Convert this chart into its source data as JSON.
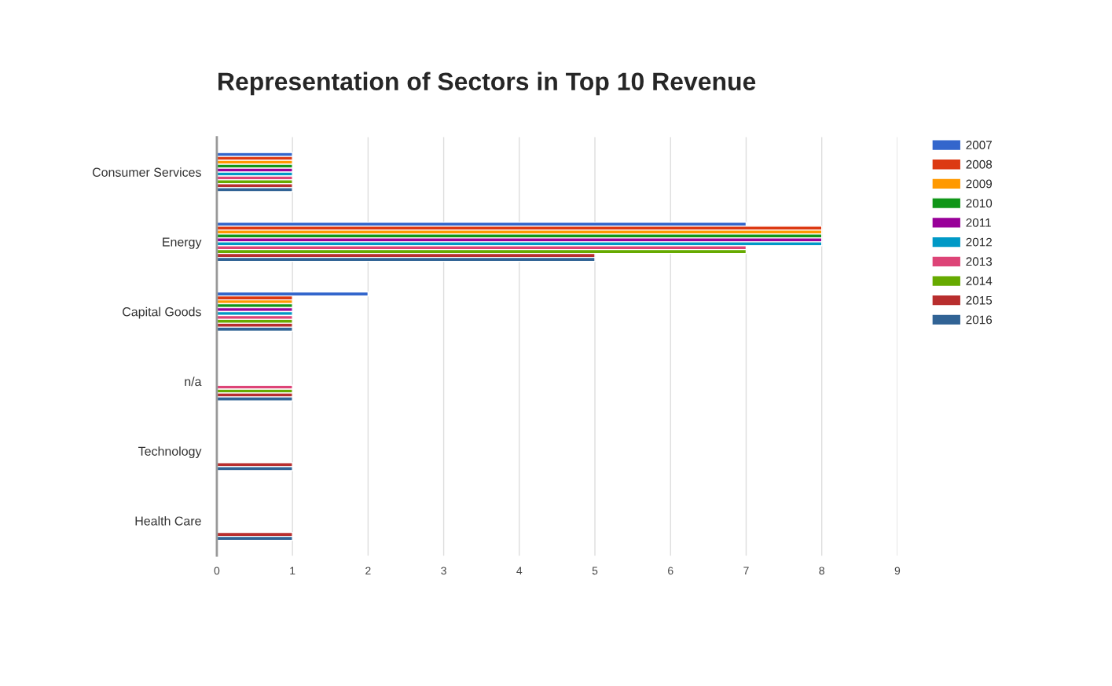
{
  "chart_data": {
    "type": "bar",
    "orientation": "horizontal",
    "title": "Representation of Sectors in Top 10 Revenue",
    "categories": [
      "Consumer Services",
      "Energy",
      "Capital Goods",
      "n/a",
      "Technology",
      "Health Care"
    ],
    "series": [
      {
        "name": "2007",
        "color": "#3366cc",
        "values": [
          1,
          7,
          2,
          null,
          null,
          null
        ]
      },
      {
        "name": "2008",
        "color": "#dc3912",
        "values": [
          1,
          8,
          1,
          null,
          null,
          null
        ]
      },
      {
        "name": "2009",
        "color": "#ff9900",
        "values": [
          1,
          8,
          1,
          null,
          null,
          null
        ]
      },
      {
        "name": "2010",
        "color": "#109618",
        "values": [
          1,
          8,
          1,
          null,
          null,
          null
        ]
      },
      {
        "name": "2011",
        "color": "#990099",
        "values": [
          1,
          8,
          1,
          null,
          null,
          null
        ]
      },
      {
        "name": "2012",
        "color": "#0099c6",
        "values": [
          1,
          8,
          1,
          null,
          null,
          null
        ]
      },
      {
        "name": "2013",
        "color": "#dd4477",
        "values": [
          1,
          7,
          1,
          1,
          null,
          null
        ]
      },
      {
        "name": "2014",
        "color": "#66aa00",
        "values": [
          1,
          7,
          1,
          1,
          null,
          null
        ]
      },
      {
        "name": "2015",
        "color": "#b82e2e",
        "values": [
          1,
          5,
          1,
          1,
          1,
          1
        ]
      },
      {
        "name": "2016",
        "color": "#316395",
        "values": [
          1,
          5,
          1,
          1,
          1,
          1
        ]
      }
    ],
    "xlim": [
      0,
      9
    ],
    "xticks": [
      0,
      1,
      2,
      3,
      4,
      5,
      6,
      7,
      8,
      9
    ],
    "grid": "x",
    "legend": "top right"
  }
}
